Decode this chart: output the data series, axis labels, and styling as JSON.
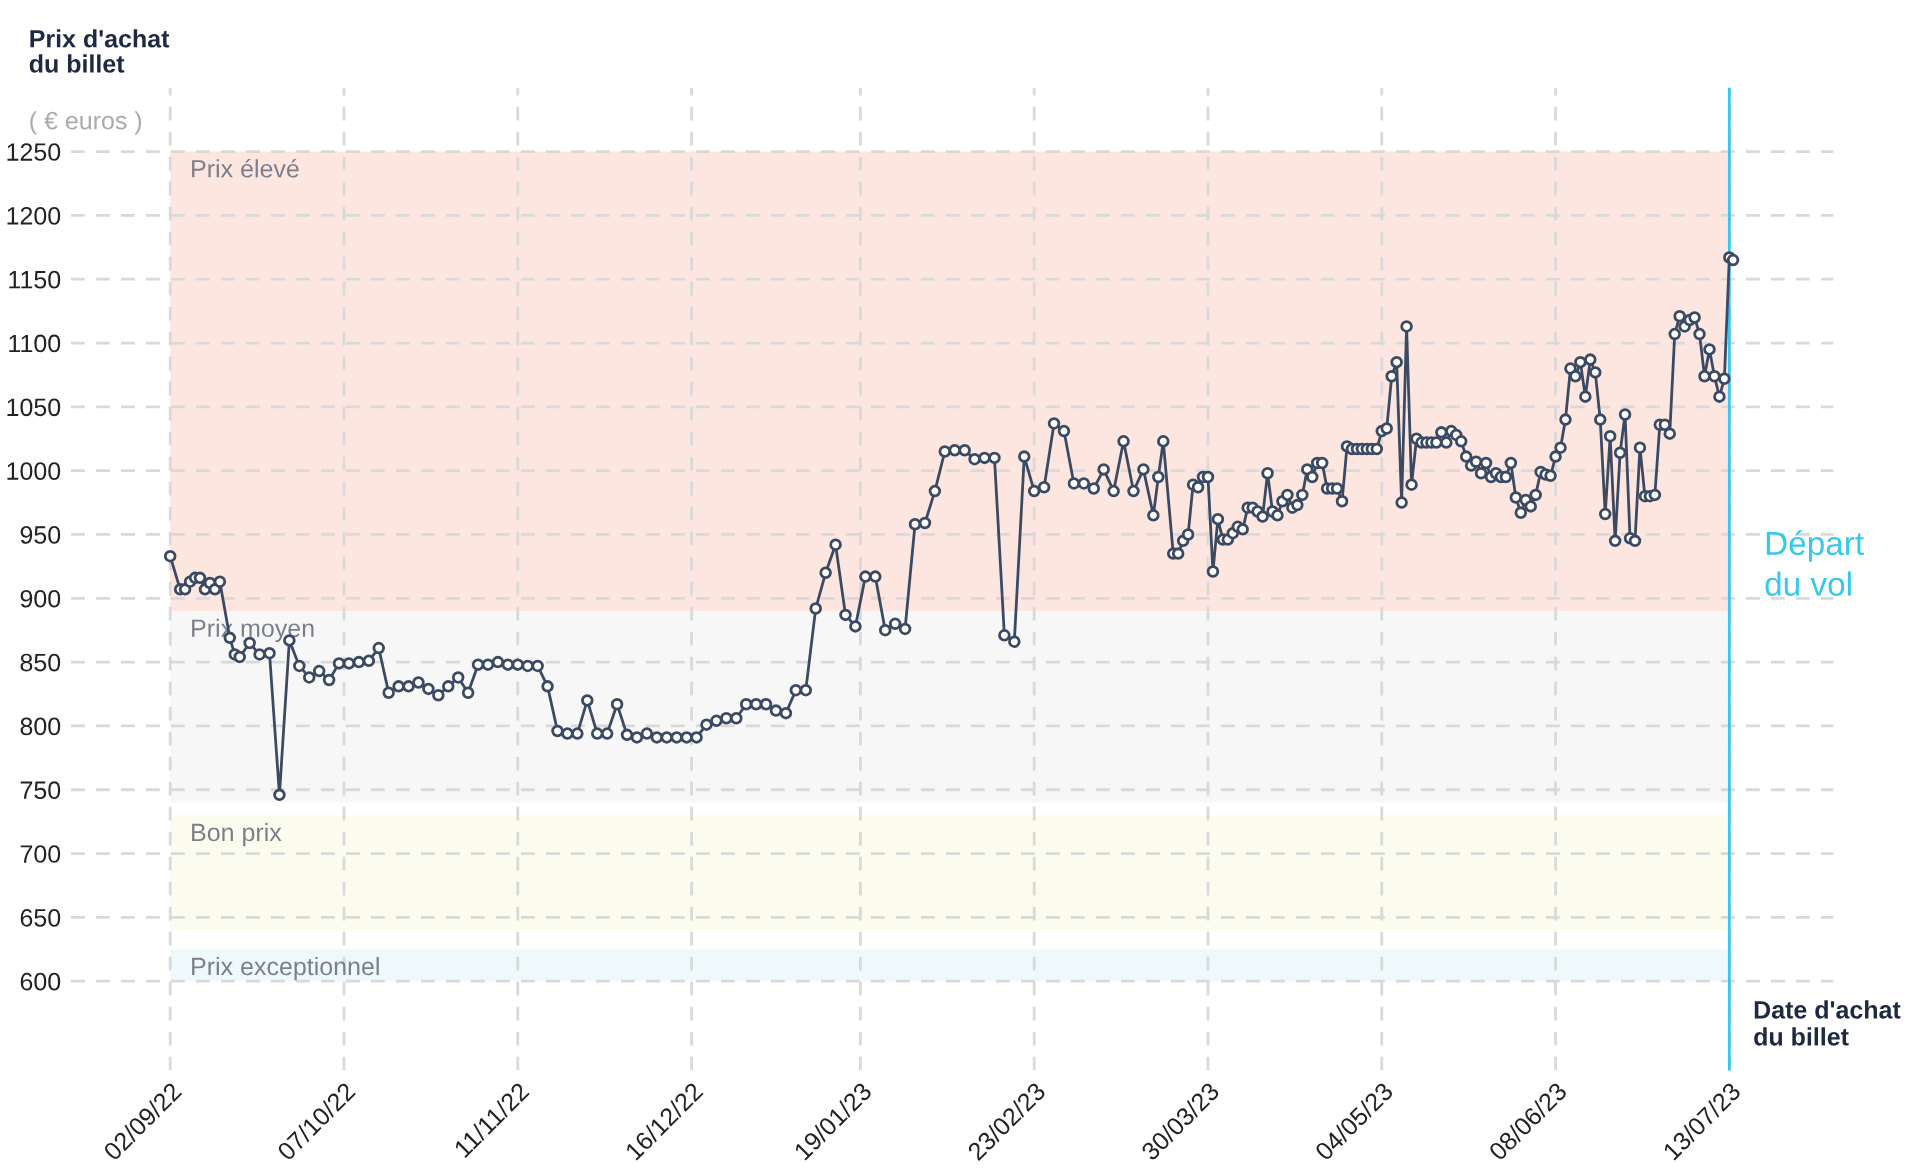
{
  "chart_data": {
    "type": "line",
    "ylabel": "Prix d'achat\ndu billet",
    "xlabel": "Date d'achat\ndu billet",
    "annotations": [
      "( € euros )"
    ],
    "x": [
      "2022-09-02",
      "2022-09-04",
      "2022-09-05",
      "2022-09-06",
      "2022-09-07",
      "2022-09-08",
      "2022-09-09",
      "2022-09-10",
      "2022-09-11",
      "2022-09-12",
      "2022-09-14",
      "2022-09-15",
      "2022-09-16",
      "2022-09-18",
      "2022-09-20",
      "2022-09-22",
      "2022-09-24",
      "2022-09-26",
      "2022-09-28",
      "2022-09-30",
      "2022-10-02",
      "2022-10-04",
      "2022-10-06",
      "2022-10-08",
      "2022-10-10",
      "2022-10-12",
      "2022-10-14",
      "2022-10-16",
      "2022-10-18",
      "2022-10-20",
      "2022-10-22",
      "2022-10-24",
      "2022-10-26",
      "2022-10-28",
      "2022-10-30",
      "2022-11-01",
      "2022-11-03",
      "2022-11-05",
      "2022-11-07",
      "2022-11-09",
      "2022-11-11",
      "2022-11-13",
      "2022-11-15",
      "2022-11-17",
      "2022-11-19",
      "2022-11-21",
      "2022-11-23",
      "2022-11-25",
      "2022-11-27",
      "2022-11-29",
      "2022-12-01",
      "2022-12-03",
      "2022-12-05",
      "2022-12-07",
      "2022-12-09",
      "2022-12-11",
      "2022-12-13",
      "2022-12-15",
      "2022-12-17",
      "2022-12-19",
      "2022-12-21",
      "2022-12-23",
      "2022-12-25",
      "2022-12-27",
      "2022-12-29",
      "2022-12-31",
      "2023-01-02",
      "2023-01-04",
      "2023-01-06",
      "2023-01-08",
      "2023-01-10",
      "2023-01-12",
      "2023-01-14",
      "2023-01-16",
      "2023-01-18",
      "2023-01-20",
      "2023-01-22",
      "2023-01-24",
      "2023-01-26",
      "2023-01-28",
      "2023-01-30",
      "2023-02-01",
      "2023-02-03",
      "2023-02-05",
      "2023-02-07",
      "2023-02-09",
      "2023-02-11",
      "2023-02-13",
      "2023-02-15",
      "2023-02-17",
      "2023-02-19",
      "2023-02-21",
      "2023-02-23",
      "2023-02-25",
      "2023-02-27",
      "2023-03-01",
      "2023-03-03",
      "2023-03-05",
      "2023-03-07",
      "2023-03-09",
      "2023-03-11",
      "2023-03-13",
      "2023-03-15",
      "2023-03-17",
      "2023-03-19",
      "2023-03-20",
      "2023-03-21",
      "2023-03-23",
      "2023-03-24",
      "2023-03-25",
      "2023-03-26",
      "2023-03-27",
      "2023-03-28",
      "2023-03-29",
      "2023-03-30",
      "2023-03-31",
      "2023-04-01",
      "2023-04-02",
      "2023-04-03",
      "2023-04-04",
      "2023-04-05",
      "2023-04-06",
      "2023-04-07",
      "2023-04-08",
      "2023-04-09",
      "2023-04-10",
      "2023-04-11",
      "2023-04-12",
      "2023-04-13",
      "2023-04-14",
      "2023-04-15",
      "2023-04-16",
      "2023-04-17",
      "2023-04-18",
      "2023-04-19",
      "2023-04-20",
      "2023-04-21",
      "2023-04-22",
      "2023-04-23",
      "2023-04-24",
      "2023-04-25",
      "2023-04-26",
      "2023-04-27",
      "2023-04-28",
      "2023-04-29",
      "2023-04-30",
      "2023-05-01",
      "2023-05-02",
      "2023-05-03",
      "2023-05-04",
      "2023-05-05",
      "2023-05-06",
      "2023-05-07",
      "2023-05-08",
      "2023-05-09",
      "2023-05-10",
      "2023-05-11",
      "2023-05-12",
      "2023-05-13",
      "2023-05-14",
      "2023-05-15",
      "2023-05-16",
      "2023-05-17",
      "2023-05-18",
      "2023-05-19",
      "2023-05-20",
      "2023-05-21",
      "2023-05-22",
      "2023-05-23",
      "2023-05-24",
      "2023-05-25",
      "2023-05-26",
      "2023-05-27",
      "2023-05-28",
      "2023-05-29",
      "2023-05-30",
      "2023-05-31",
      "2023-06-01",
      "2023-06-02",
      "2023-06-03",
      "2023-06-04",
      "2023-06-05",
      "2023-06-06",
      "2023-06-07",
      "2023-06-08",
      "2023-06-09",
      "2023-06-10",
      "2023-06-11",
      "2023-06-12",
      "2023-06-13",
      "2023-06-14",
      "2023-06-15",
      "2023-06-16",
      "2023-06-17",
      "2023-06-18",
      "2023-06-19",
      "2023-06-20",
      "2023-06-21",
      "2023-06-22",
      "2023-06-23",
      "2023-06-24",
      "2023-06-25",
      "2023-06-26",
      "2023-06-27",
      "2023-06-28",
      "2023-06-29",
      "2023-06-30",
      "2023-07-01",
      "2023-07-02",
      "2023-07-03",
      "2023-07-04",
      "2023-07-05",
      "2023-07-06",
      "2023-07-07",
      "2023-07-08",
      "2023-07-09",
      "2023-07-10",
      "2023-07-11",
      "2023-07-12",
      "2023-07-13",
      "2023-07-13T18:00"
    ],
    "series": [
      {
        "color": "#3b4a63",
        "values": [
          933,
          907,
          907,
          913,
          916,
          916,
          907,
          912,
          907,
          913,
          869,
          856,
          854,
          865,
          856,
          857,
          746,
          867,
          847,
          838,
          843,
          836,
          849,
          849,
          850,
          851,
          861,
          826,
          831,
          831,
          834,
          829,
          824,
          831,
          838,
          826,
          848,
          848,
          850,
          848,
          848,
          847,
          847,
          831,
          796,
          794,
          794,
          820,
          794,
          794,
          817,
          793,
          791,
          794,
          791,
          791,
          791,
          791,
          791,
          801,
          804,
          806,
          806,
          817,
          817,
          817,
          812,
          810,
          828,
          828,
          892,
          920,
          942,
          887,
          878,
          917,
          917,
          875,
          880,
          876,
          958,
          959,
          984,
          1015,
          1016,
          1016,
          1009,
          1010,
          1010,
          871,
          866,
          1011,
          984,
          987,
          1037,
          1031,
          990,
          990,
          986,
          1001,
          984,
          1023,
          984,
          1001,
          965,
          995,
          1023,
          935,
          935,
          945,
          950,
          989,
          987,
          995,
          995,
          921,
          962,
          946,
          946,
          951,
          956,
          954,
          971,
          971,
          968,
          964,
          998,
          968,
          965,
          976,
          981,
          971,
          973,
          981,
          1001,
          995,
          1006,
          1006,
          986,
          986,
          986,
          976,
          1019,
          1017,
          1017,
          1017,
          1017,
          1017,
          1017,
          1031,
          1033,
          1074,
          1085,
          975,
          1113,
          989,
          1025,
          1022,
          1022,
          1022,
          1022,
          1030,
          1022,
          1031,
          1028,
          1023,
          1011,
          1004,
          1007,
          998,
          1006,
          995,
          998,
          995,
          995,
          1006,
          979,
          967,
          977,
          972,
          981,
          999,
          997,
          996,
          1011,
          1018,
          1040,
          1080,
          1074,
          1085,
          1058,
          1087,
          1077,
          1040,
          966,
          1027,
          945,
          1014,
          1044,
          947,
          945,
          1018,
          980,
          980,
          981,
          1036,
          1036,
          1029,
          1107,
          1121,
          1113,
          1118,
          1120,
          1107,
          1074,
          1095,
          1074,
          1058,
          1072,
          1167,
          1165
        ]
      }
    ],
    "xlim": [
      "2022-08-13",
      "2023-08-03"
    ],
    "xticks": [
      {
        "value": "2022-09-02",
        "label": "02/09/22"
      },
      {
        "value": "2022-10-07",
        "label": "07/10/22"
      },
      {
        "value": "2022-11-11",
        "label": "11/11/22"
      },
      {
        "value": "2022-12-16",
        "label": "16/12/22"
      },
      {
        "value": "2023-01-19",
        "label": "19/01/23"
      },
      {
        "value": "2023-02-23",
        "label": "23/02/23"
      },
      {
        "value": "2023-03-30",
        "label": "30/03/23"
      },
      {
        "value": "2023-05-04",
        "label": "04/05/23"
      },
      {
        "value": "2023-06-08",
        "label": "08/06/23"
      },
      {
        "value": "2023-07-13",
        "label": "13/07/23"
      }
    ],
    "ylim": [
      530,
      1300
    ],
    "yticks": [
      600,
      650,
      700,
      750,
      800,
      850,
      900,
      950,
      1000,
      1050,
      1100,
      1150,
      1200,
      1250
    ],
    "bands": [
      {
        "axis": "y",
        "from": 890,
        "to": 1250,
        "label": "Prix élevé",
        "color": "#fde6e0"
      },
      {
        "axis": "y",
        "from": 740,
        "to": 890,
        "label": "Prix moyen",
        "color": "#f7f7f7"
      },
      {
        "axis": "y",
        "from": 640,
        "to": 730,
        "label": "Bon prix",
        "color": "#fbfcee"
      },
      {
        "axis": "y",
        "from": 600,
        "to": 625,
        "label": "Prix exceptionnel",
        "color": "#eef9fb"
      }
    ],
    "ref_lines": [
      {
        "axis": "x",
        "value": "2023-07-13",
        "label": "Départ\ndu vol",
        "color": "#35c8ea"
      }
    ],
    "grid": true,
    "marker": "circle",
    "line_style": "solid"
  }
}
